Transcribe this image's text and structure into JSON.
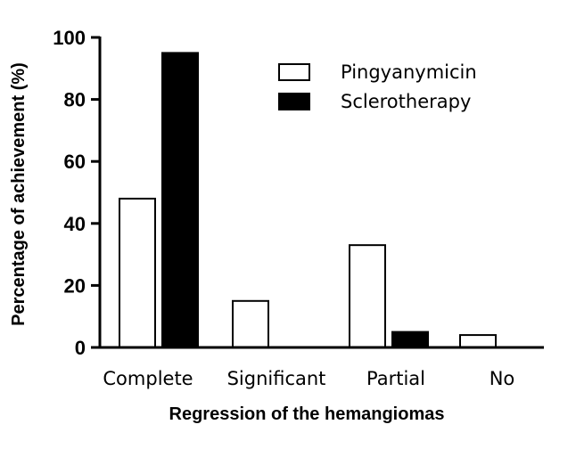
{
  "chart_data": {
    "type": "bar",
    "title": "",
    "xlabel": "Regression of the hemangiomas",
    "ylabel": "Percentage of achievement (%)",
    "ylim": [
      0,
      100
    ],
    "yticks": [
      0,
      20,
      40,
      60,
      80,
      100
    ],
    "grid": false,
    "legend_position": "top-right",
    "categories": [
      "Complete",
      "Significant",
      "Partial",
      "No"
    ],
    "series": [
      {
        "name": "Pingyanymicin",
        "values": [
          48,
          15,
          33,
          4
        ],
        "fill": "#ffffff",
        "stroke": "#000000"
      },
      {
        "name": "Sclerotherapy",
        "values": [
          95,
          0,
          5,
          0
        ],
        "fill": "#000000",
        "stroke": "#000000"
      }
    ]
  }
}
